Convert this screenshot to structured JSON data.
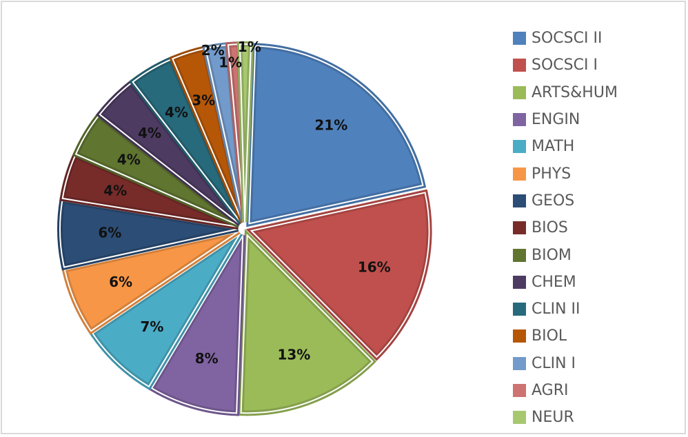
{
  "chart_data": {
    "type": "pie",
    "title": "",
    "legend_position": "right",
    "exploded": true,
    "categories": [
      "SOCSCI II",
      "SOCSCI I",
      "ARTS&HUM",
      "ENGIN",
      "MATH",
      "PHYS",
      "GEOS",
      "BIOS",
      "BIOM",
      "CHEM",
      "CLIN II",
      "BIOL",
      "CLIN I",
      "AGRI",
      "NEUR"
    ],
    "values": [
      21,
      16,
      13,
      8,
      7,
      6,
      6,
      4,
      4,
      4,
      4,
      3,
      2,
      1,
      1
    ],
    "labels": [
      "21%",
      "16%",
      "13%",
      "8%",
      "7%",
      "6%",
      "6%",
      "4%",
      "4%",
      "4%",
      "4%",
      "3%",
      "2%",
      "1%",
      "1%"
    ],
    "colors": [
      "#4F81BD",
      "#C0504D",
      "#9BBB59",
      "#8064A2",
      "#4BACC6",
      "#F79646",
      "#2C4D75",
      "#772C2A",
      "#5F7530",
      "#4D3B62",
      "#276A7C",
      "#B65708",
      "#729ACA",
      "#CD7371",
      "#A7C86F"
    ]
  },
  "legend": {
    "items": [
      {
        "label": "SOCSCI II",
        "color": "#4F81BD"
      },
      {
        "label": "SOCSCI I",
        "color": "#C0504D"
      },
      {
        "label": "ARTS&HUM",
        "color": "#9BBB59"
      },
      {
        "label": "ENGIN",
        "color": "#8064A2"
      },
      {
        "label": "MATH",
        "color": "#4BACC6"
      },
      {
        "label": "PHYS",
        "color": "#F79646"
      },
      {
        "label": "GEOS",
        "color": "#2C4D75"
      },
      {
        "label": "BIOS",
        "color": "#772C2A"
      },
      {
        "label": "BIOM",
        "color": "#5F7530"
      },
      {
        "label": "CHEM",
        "color": "#4D3B62"
      },
      {
        "label": "CLIN II",
        "color": "#276A7C"
      },
      {
        "label": "BIOL",
        "color": "#B65708"
      },
      {
        "label": "CLIN I",
        "color": "#729ACA"
      },
      {
        "label": "AGRI",
        "color": "#CD7371"
      },
      {
        "label": "NEUR",
        "color": "#A7C86F"
      }
    ]
  }
}
